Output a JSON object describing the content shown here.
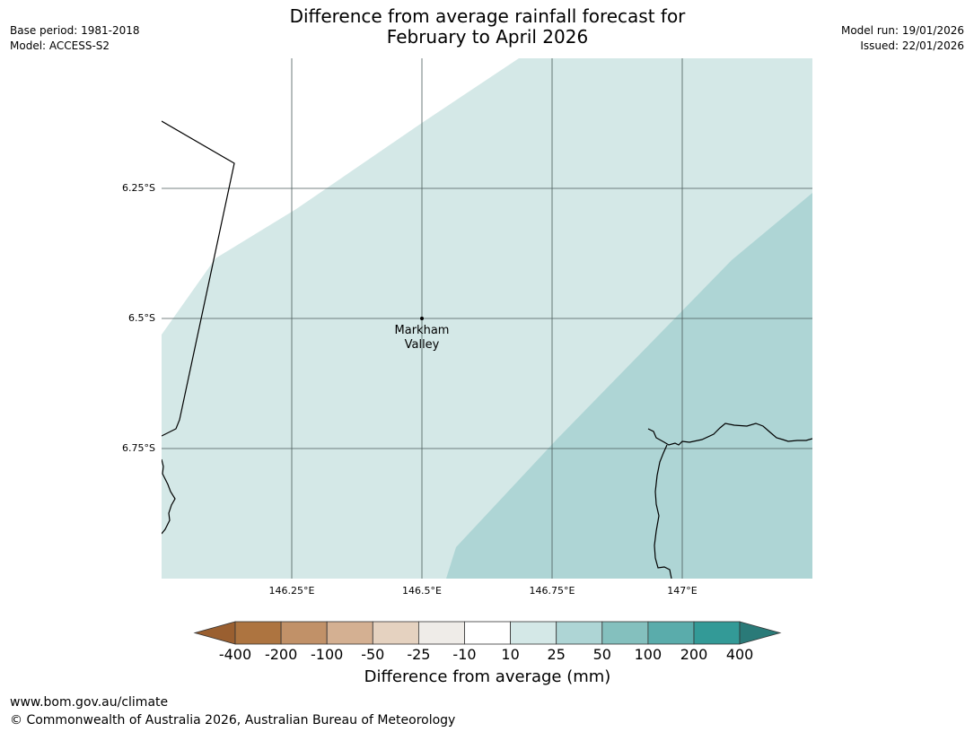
{
  "title": {
    "line1": "Difference from average rainfall forecast for",
    "line2": "February to April 2026"
  },
  "meta_left": {
    "base_period": "Base period: 1981-2018",
    "model": "Model: ACCESS-S2"
  },
  "meta_right": {
    "model_run": "Model run: 19/01/2026",
    "issued": "Issued: 22/01/2026"
  },
  "map": {
    "lat_labels": [
      "6.25°S",
      "6.5°S",
      "6.75°S"
    ],
    "lon_labels": [
      "146.25°E",
      "146.5°E",
      "146.75°E",
      "147°E"
    ],
    "place": {
      "name_line1": "Markham",
      "name_line2": "Valley"
    },
    "colors": {
      "band_10_25": "#d4e8e7",
      "band_25_50": "#aed5d5",
      "gridline": "#4a5a5a",
      "coastline": "#000000"
    }
  },
  "colorbar": {
    "tick_labels": [
      "-400",
      "-200",
      "-100",
      "-50",
      "-25",
      "-10",
      "10",
      "25",
      "50",
      "100",
      "200",
      "400"
    ],
    "colors": [
      "#9a5f30",
      "#ad7440",
      "#c19168",
      "#d4b092",
      "#e5d2c0",
      "#efece8",
      "#ffffff",
      "#d4e8e7",
      "#aed5d5",
      "#84c0be",
      "#5aacab",
      "#339a97",
      "#2a7a78"
    ],
    "unit_label": "Difference from average (mm)"
  },
  "footer": {
    "url": "www.bom.gov.au/climate",
    "copyright": "© Commonwealth of Australia 2026, Australian Bureau of Meteorology"
  }
}
